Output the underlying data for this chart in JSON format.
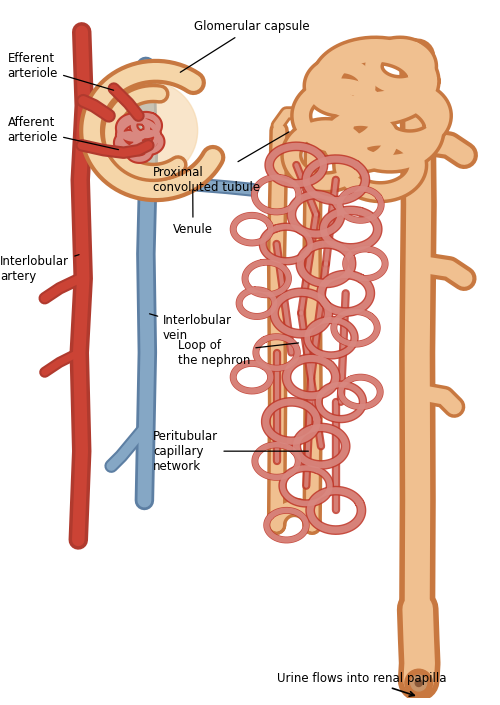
{
  "bg_color": "#ffffff",
  "labels": {
    "glomerular_capsule": "Glomerular capsule",
    "efferent_arteriole": "Efferent\narteriole",
    "afferent_arteriole": "Afferent\narteriole",
    "proximal_convoluted": "Proximal\nconvoluted tubule",
    "interlobular_artery": "Interlobular\nartery",
    "venule": "Venule",
    "interlobular_vein": "Interlobular\nvein",
    "loop_nephron": "Loop of\nthe nephron",
    "peritubular": "Peritubular\ncapillary\nnetwork",
    "urine_flows": "Urine flows into renal papilla"
  },
  "colors": {
    "artery": "#B03A2E",
    "artery_mid": "#CB4335",
    "artery_light": "#D98880",
    "vein": "#5D7FA3",
    "vein_light": "#85A7C5",
    "tubule_fill": "#F0C090",
    "tubule_mid": "#E8A870",
    "tubule_dark": "#C87840",
    "glom_fill": "#F5D5A8",
    "glom_ring": "#D4956A",
    "glom_wall": "#C07848",
    "capillary_red": "#C0392B",
    "capillary_light": "#E07060",
    "text": "#000000"
  },
  "figsize": [
    5.0,
    7.05
  ],
  "dpi": 100
}
